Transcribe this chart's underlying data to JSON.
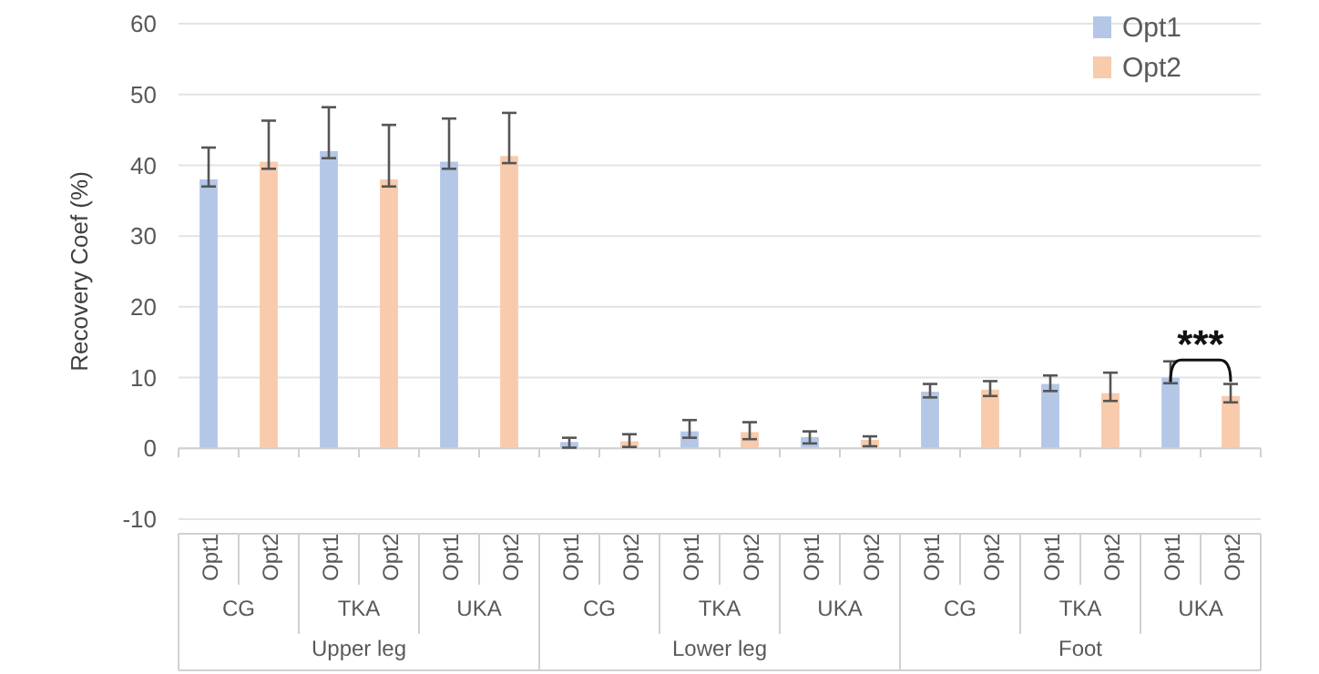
{
  "chart_data": {
    "type": "bar",
    "ylabel": "Recovery Coef (%)",
    "categories": [
      "Opt1",
      "Opt2",
      "Opt1",
      "Opt2",
      "Opt1",
      "Opt2",
      "Opt1",
      "Opt2",
      "Opt1",
      "Opt2",
      "Opt1",
      "Opt2",
      "Opt1",
      "Opt2",
      "Opt1",
      "Opt2",
      "Opt1",
      "Opt2"
    ],
    "series": [
      {
        "name": "Opt1",
        "color": "#b4c7e7",
        "values": [
          38,
          null,
          42,
          null,
          40.5,
          null,
          0.9,
          null,
          2.4,
          null,
          1.6,
          null,
          8.0,
          null,
          9.1,
          null,
          10.0,
          null
        ],
        "errors": [
          [
            37,
            42.5
          ],
          null,
          [
            41,
            48.2
          ],
          null,
          [
            39.5,
            46.6
          ],
          null,
          [
            0.1,
            1.5
          ],
          null,
          [
            1.5,
            4.0
          ],
          null,
          [
            0.7,
            2.4
          ],
          null,
          [
            7.2,
            9.1
          ],
          null,
          [
            8.1,
            10.3
          ],
          null,
          [
            9.2,
            12.3
          ],
          null
        ]
      },
      {
        "name": "Opt2",
        "color": "#f8cbad",
        "values": [
          null,
          40.5,
          null,
          38,
          null,
          41.3,
          null,
          1.0,
          null,
          2.3,
          null,
          1.2,
          null,
          8.3,
          null,
          7.8,
          null,
          7.4
        ],
        "errors": [
          null,
          [
            39.5,
            46.3
          ],
          null,
          [
            37,
            45.7
          ],
          null,
          [
            40.3,
            47.4
          ],
          null,
          [
            0.2,
            2.0
          ],
          null,
          [
            1.3,
            3.7
          ],
          null,
          [
            0.3,
            1.7
          ],
          null,
          [
            7.4,
            9.5
          ],
          null,
          [
            6.7,
            10.7
          ],
          null,
          [
            6.5,
            9.1
          ]
        ]
      }
    ],
    "ylim": [
      -10,
      60
    ],
    "yticks": [
      -10,
      0,
      10,
      20,
      30,
      40,
      50,
      60
    ],
    "grid": "y",
    "legend": "top right",
    "annotations": [
      "CG",
      "TKA",
      "UKA",
      "CG",
      "TKA",
      "UKA",
      "CG",
      "TKA",
      "UKA",
      "Upper leg",
      "Lower leg",
      "Foot",
      "***"
    ]
  }
}
